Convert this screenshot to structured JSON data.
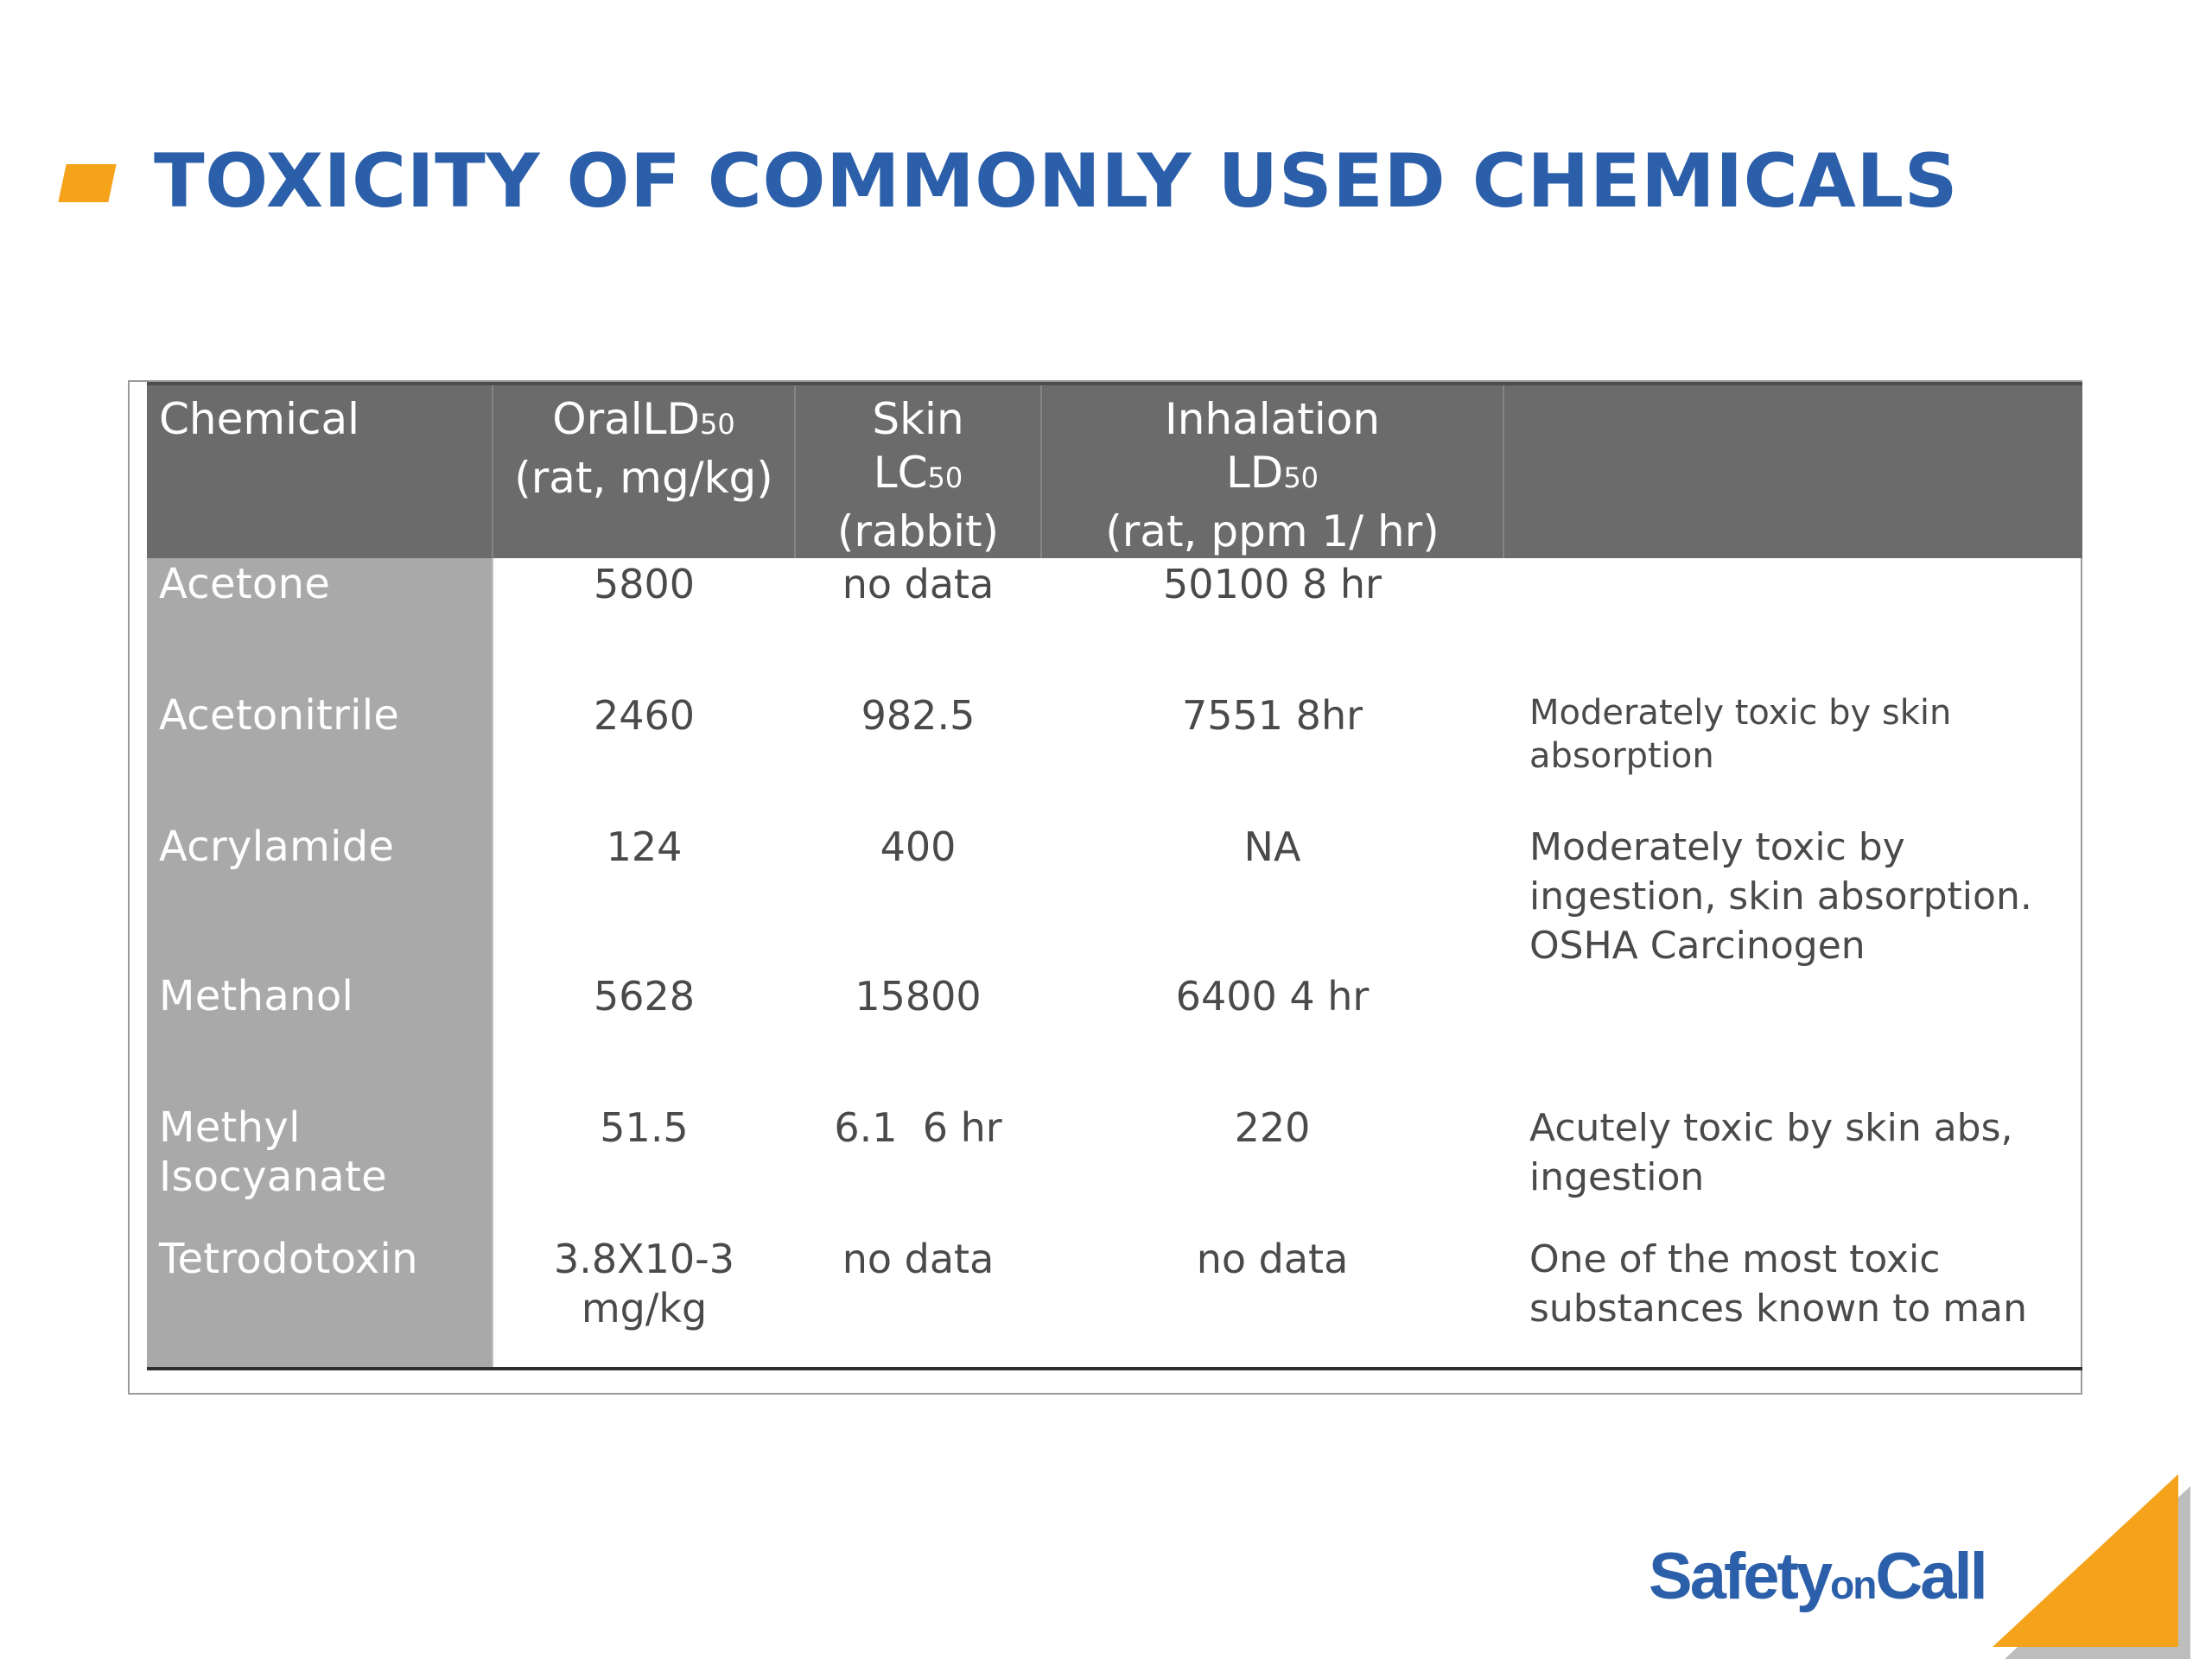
{
  "page": {
    "title": "TOXICITY OF COMMONLY USED CHEMICALS"
  },
  "colors": {
    "title_blue": "#2C5FAA",
    "accent_orange": "#F5A31B",
    "header_gray": "#6b6b6b",
    "chemical_column_gray": "#a9a9a9",
    "body_text": "#4a4a4a"
  },
  "table": {
    "headers": {
      "chemical": [
        "Chemical"
      ],
      "oral": [
        "OralLD50",
        "(rat, mg/kg)"
      ],
      "skin": [
        "Skin",
        "LC50",
        "(rabbit)"
      ],
      "inhalation": [
        "Inhalation",
        "LD50",
        "(rat, ppm 1/ hr)"
      ],
      "notes": [
        ""
      ]
    },
    "rows": [
      {
        "chemical": "Acetone",
        "oral": "5800",
        "skin": "no data",
        "inhalation": "50100 8 hr",
        "notes": ""
      },
      {
        "chemical": "Acetonitrile",
        "oral": "2460",
        "skin": "982.5",
        "inhalation": "7551 8hr",
        "notes": "Moderately toxic by skin absorption"
      },
      {
        "chemical": "Acrylamide",
        "oral": "124",
        "skin": "400",
        "inhalation": "NA",
        "notes": "Moderately toxic by ingestion, skin absorption. OSHA Carcinogen"
      },
      {
        "chemical": "Methanol",
        "oral": "5628",
        "skin": "15800",
        "inhalation": "6400 4 hr",
        "notes": ""
      },
      {
        "chemical": "Methyl Isocyanate",
        "oral": "51.5",
        "skin": "6.1  6 hr",
        "inhalation": "220",
        "notes": "Acutely toxic by skin abs, ingestion"
      },
      {
        "chemical": "Tetrodotoxin",
        "oral": "3.8X10-3mg/kg",
        "skin": "no data",
        "inhalation": "no data",
        "notes": "One of the most toxic substances known to man"
      }
    ]
  },
  "logo": {
    "part1": "Safety",
    "part2": "on",
    "part3": "Call"
  }
}
